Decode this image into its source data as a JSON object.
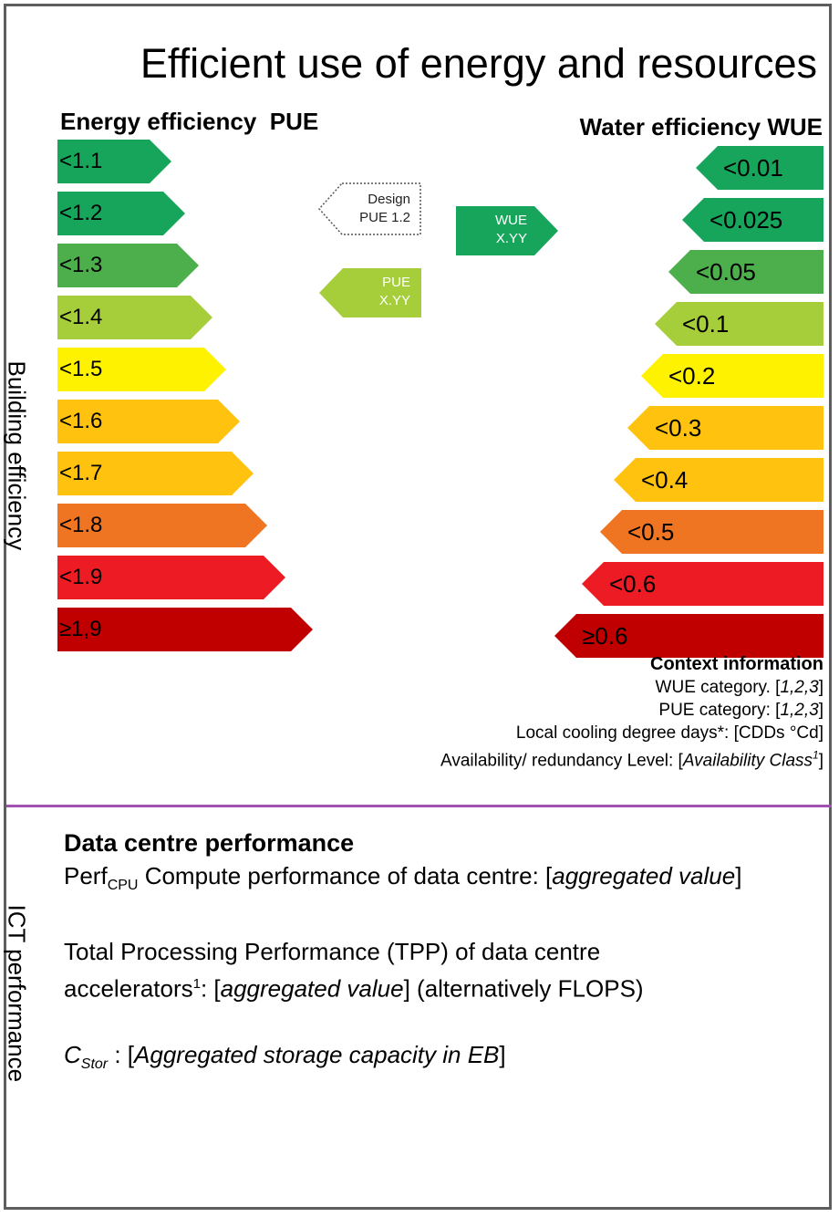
{
  "title": "Efficient use of energy and resources",
  "building_axis_label": "Building efficiency",
  "ict_axis_label": "ICT performance",
  "pue": {
    "heading": "Energy efficiency  PUE",
    "classes": [
      "<1.1",
      "<1.2",
      "<1.3",
      "<1.4",
      "<1.5",
      "<1.6",
      "<1.7",
      "<1.8",
      "<1.9",
      "≥1,9"
    ],
    "colors": [
      "#16a55a",
      "#16a55a",
      "#4caf4c",
      "#a6cd3a",
      "#fff200",
      "#ffc20e",
      "#ffc20e",
      "#f07522",
      "#ed1c24",
      "#c00000"
    ]
  },
  "wue": {
    "heading": "Water efficiency WUE",
    "classes": [
      "<0.01",
      "<0.025",
      "<0.05",
      "<0.1",
      "<0.2",
      "<0.3",
      "<0.4",
      "<0.5",
      "<0.6",
      "≥0.6"
    ],
    "colors": [
      "#16a55a",
      "#16a55a",
      "#4caf4c",
      "#a6cd3a",
      "#fff200",
      "#ffc20e",
      "#ffc20e",
      "#f07522",
      "#ed1c24",
      "#c00000"
    ]
  },
  "design_tag": {
    "line1": "Design",
    "line2": "PUE 1.2"
  },
  "pue_tag": {
    "line1": "PUE",
    "line2": "X.YY"
  },
  "wue_tag": {
    "line1": "WUE",
    "line2": "X.YY"
  },
  "context": {
    "heading": "Context information",
    "wue_category_label": "WUE category. [",
    "wue_category_value": "1,2,3",
    "pue_category_label": "PUE category: [",
    "pue_category_value": "1,2,3",
    "cooling_degree_days": "Local cooling degree days*: [CDDs °Cd]",
    "availability_label": "Availability/ redundancy Level: [",
    "availability_value": "Availability Class",
    "availability_sup": "1"
  },
  "performance": {
    "heading": "Data centre performance",
    "perf_prefix": "Perf",
    "perf_sub": "CPU",
    "perf_text": " Compute performance of data centre: [",
    "perf_value": "aggregated value",
    "tpp_line1": "Total Processing Performance (TPP) of data centre",
    "tpp_text": "accelerators",
    "tpp_sup": "1",
    "tpp_mid": ": [",
    "tpp_value": "aggregated value",
    "tpp_tail": "] (alternatively FLOPS)",
    "cstor_prefix": "C",
    "cstor_sub": "Stor",
    "cstor_mid": " : [",
    "cstor_value": "Aggregated storage capacity in EB",
    "closing_bracket": "]"
  }
}
